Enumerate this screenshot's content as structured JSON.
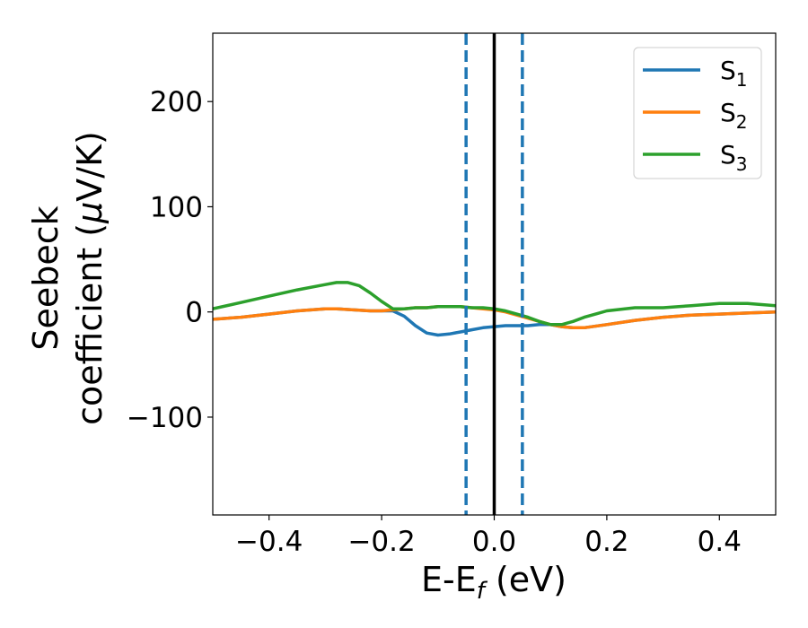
{
  "chart_data": {
    "type": "line",
    "title": "",
    "xlabel": {
      "base": "E-E",
      "subscript": "f",
      "suffix": " (eV)"
    },
    "ylabel": {
      "line1": "Seebeck",
      "line2_prefix": "coefficient  (",
      "mu": "μ",
      "line2_suffix": "V/K)"
    },
    "xlim": [
      -0.5,
      0.5
    ],
    "ylim": [
      -193,
      265
    ],
    "xticks": [
      -0.4,
      -0.2,
      0.0,
      0.2,
      0.4
    ],
    "xtick_labels": [
      "−0.4",
      "−0.2",
      "0.0",
      "0.2",
      "0.4"
    ],
    "yticks": [
      200,
      100,
      0,
      -100
    ],
    "ytick_labels": [
      "200",
      "100",
      "0",
      "−100"
    ],
    "grid": false,
    "legend_position": "top-right",
    "series": [
      {
        "name": "S",
        "subscript": "1",
        "color": "#1f77b4",
        "x": [
          -0.5,
          -0.45,
          -0.4,
          -0.35,
          -0.3,
          -0.28,
          -0.25,
          -0.22,
          -0.2,
          -0.18,
          -0.16,
          -0.14,
          -0.12,
          -0.1,
          -0.08,
          -0.06,
          -0.04,
          -0.02,
          0.0,
          0.02,
          0.04,
          0.06,
          0.08,
          0.1,
          0.12,
          0.14,
          0.16,
          0.2,
          0.25,
          0.3,
          0.35,
          0.4,
          0.45,
          0.5
        ],
        "y": [
          -7,
          -5,
          -2,
          1,
          3,
          3,
          2,
          1,
          1,
          1,
          -4,
          -13,
          -20,
          -22,
          -21,
          -19,
          -17,
          -15,
          -14,
          -13,
          -13,
          -13,
          -12,
          -12,
          -14,
          -15,
          -15,
          -12,
          -8,
          -5,
          -3,
          -2,
          -1,
          0
        ]
      },
      {
        "name": "S",
        "subscript": "2",
        "color": "#ff7f0e",
        "x": [
          -0.5,
          -0.45,
          -0.4,
          -0.35,
          -0.3,
          -0.28,
          -0.25,
          -0.22,
          -0.2,
          -0.18,
          -0.16,
          -0.14,
          -0.12,
          -0.1,
          -0.08,
          -0.06,
          -0.04,
          -0.02,
          0.0,
          0.02,
          0.04,
          0.06,
          0.08,
          0.1,
          0.12,
          0.14,
          0.16,
          0.2,
          0.25,
          0.3,
          0.35,
          0.4,
          0.45,
          0.5
        ],
        "y": [
          -7,
          -5,
          -2,
          1,
          3,
          3,
          2,
          1,
          1,
          2,
          3,
          4,
          4,
          5,
          5,
          5,
          4,
          3,
          2,
          0,
          -3,
          -6,
          -9,
          -12,
          -14,
          -15,
          -15,
          -12,
          -8,
          -5,
          -3,
          -2,
          -1,
          0
        ]
      },
      {
        "name": "S",
        "subscript": "3",
        "color": "#2ca02c",
        "x": [
          -0.5,
          -0.45,
          -0.4,
          -0.35,
          -0.3,
          -0.28,
          -0.26,
          -0.24,
          -0.22,
          -0.2,
          -0.18,
          -0.16,
          -0.14,
          -0.12,
          -0.1,
          -0.08,
          -0.06,
          -0.04,
          -0.02,
          0.0,
          0.02,
          0.04,
          0.06,
          0.08,
          0.1,
          0.12,
          0.14,
          0.16,
          0.18,
          0.2,
          0.25,
          0.3,
          0.35,
          0.4,
          0.45,
          0.5
        ],
        "y": [
          3,
          9,
          15,
          21,
          26,
          28,
          28,
          25,
          18,
          10,
          3,
          3,
          4,
          4,
          5,
          5,
          5,
          4,
          4,
          3,
          1,
          -2,
          -5,
          -9,
          -12,
          -12,
          -9,
          -5,
          -2,
          1,
          4,
          4,
          6,
          8,
          8,
          6
        ]
      }
    ],
    "vlines": [
      {
        "x": -0.05,
        "style": "dashed",
        "color": "#1f77b4"
      },
      {
        "x": 0.0,
        "style": "solid",
        "color": "#000000"
      },
      {
        "x": 0.05,
        "style": "dashed",
        "color": "#1f77b4"
      }
    ]
  }
}
